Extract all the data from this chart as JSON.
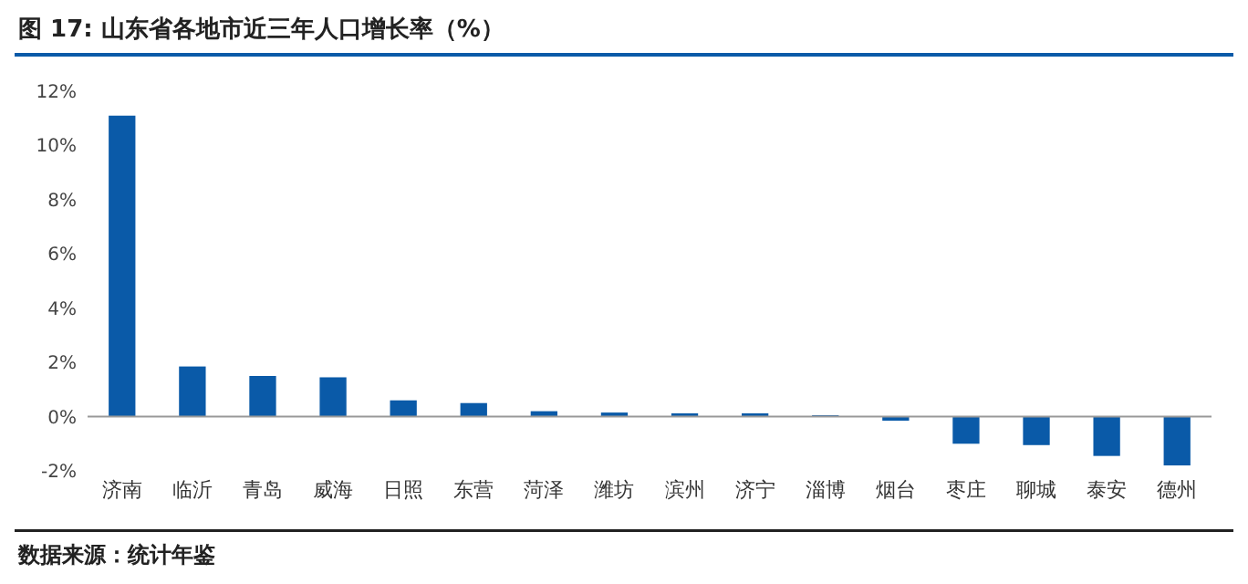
{
  "chart_data": {
    "type": "bar",
    "title": "图 17:  山东省各地市近三年人口增长率（%）",
    "categories": [
      "济南",
      "临沂",
      "青岛",
      "威海",
      "日照",
      "东营",
      "菏泽",
      "潍坊",
      "滨州",
      "济宁",
      "淄博",
      "烟台",
      "枣庄",
      "聊城",
      "泰安",
      "德州"
    ],
    "values": [
      11.1,
      1.85,
      1.5,
      1.45,
      0.6,
      0.5,
      0.2,
      0.15,
      0.12,
      0.12,
      0.05,
      -0.15,
      -1.0,
      -1.05,
      -1.45,
      -1.8
    ],
    "color": "#0a5aa8",
    "ylim": [
      -2,
      12
    ],
    "yticks": [
      {
        "value": -2,
        "label": "-2%"
      },
      {
        "value": 0,
        "label": "0%"
      },
      {
        "value": 2,
        "label": "2%"
      },
      {
        "value": 4,
        "label": "4%"
      },
      {
        "value": 6,
        "label": "6%"
      },
      {
        "value": 8,
        "label": "8%"
      },
      {
        "value": 10,
        "label": "10%"
      },
      {
        "value": 12,
        "label": "12%"
      }
    ],
    "annotations": [
      "数据来源：统计年鉴"
    ]
  }
}
